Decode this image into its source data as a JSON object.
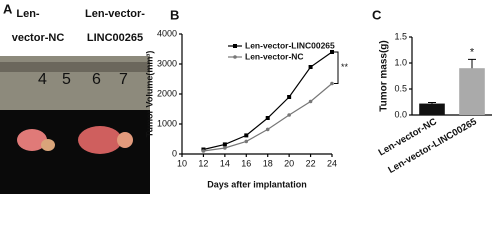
{
  "photo": {
    "label": "A",
    "groups": [
      [
        "Len-",
        "vector-NC"
      ],
      [
        "Len-vector-",
        "LINC00265"
      ]
    ],
    "ruler_numbers": [
      "4",
      "5",
      "6",
      "7"
    ]
  },
  "chart_data": [
    {
      "type": "line",
      "panel_label": "B",
      "y_label": "Tumor Volume(mm³)",
      "x_label": "Days after implantation",
      "x": [
        12,
        14,
        16,
        18,
        20,
        22,
        24
      ],
      "series": [
        {
          "name": "Len-vector-LINC00265",
          "color": "#000000",
          "marker": "square",
          "values": [
            150,
            320,
            620,
            1200,
            1900,
            2900,
            3400
          ]
        },
        {
          "name": "Len-vector-NC",
          "color": "#777777",
          "marker": "circle",
          "values": [
            100,
            200,
            420,
            820,
            1300,
            1750,
            2350
          ]
        }
      ],
      "xlim": [
        10,
        24
      ],
      "xticks": [
        10,
        12,
        14,
        16,
        18,
        20,
        22,
        24
      ],
      "ylim": [
        0,
        4000
      ],
      "yticks": [
        0,
        1000,
        2000,
        3000,
        4000
      ],
      "annotation": "**",
      "legend": "upper left"
    },
    {
      "type": "bar",
      "panel_label": "C",
      "y_label": "Tumor mass(g)",
      "categories": [
        "Len-vector-NC",
        "Len-vector-LINC00265"
      ],
      "values": [
        0.22,
        0.9
      ],
      "errors": [
        0.02,
        0.17
      ],
      "colors": [
        "#111111",
        "#aaaaaa"
      ],
      "ylim": [
        0,
        1.5
      ],
      "yticks": [
        {
          "value": 0,
          "label": "0.0"
        },
        {
          "value": 0.5,
          "label": "0.5"
        },
        {
          "value": 1,
          "label": "1.0"
        },
        {
          "value": 1.5,
          "label": "1.5"
        }
      ],
      "annotation": "*"
    }
  ]
}
